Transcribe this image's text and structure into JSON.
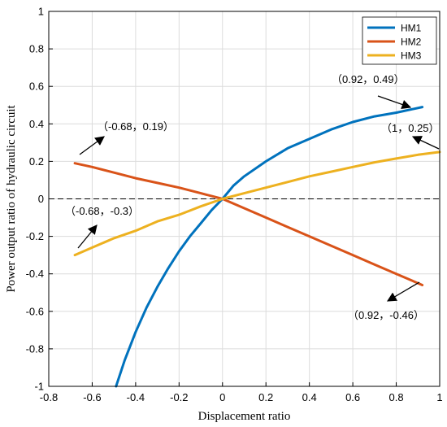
{
  "chart_data": {
    "type": "line",
    "xlabel": "Displacement ratio",
    "ylabel": "Power output ratio of hydraulic circuit",
    "xlim": [
      -0.8,
      1
    ],
    "ylim": [
      -1,
      1
    ],
    "xticks": [
      -0.8,
      -0.6,
      -0.4,
      -0.2,
      0,
      0.2,
      0.4,
      0.6,
      0.8,
      1
    ],
    "yticks": [
      -1,
      -0.8,
      -0.6,
      -0.4,
      -0.2,
      0,
      0.2,
      0.4,
      0.6,
      0.8,
      1
    ],
    "grid": true,
    "legend_position": "top-right",
    "zero_line": {
      "y": 0,
      "style": "dashed"
    },
    "series": [
      {
        "name": "HM1",
        "color": "#0072bd",
        "x": [
          -0.49,
          -0.45,
          -0.4,
          -0.35,
          -0.3,
          -0.25,
          -0.2,
          -0.15,
          -0.1,
          -0.05,
          0,
          0.05,
          0.1,
          0.2,
          0.3,
          0.4,
          0.5,
          0.6,
          0.7,
          0.8,
          0.92
        ],
        "y": [
          -1.0,
          -0.86,
          -0.71,
          -0.58,
          -0.47,
          -0.37,
          -0.28,
          -0.2,
          -0.13,
          -0.06,
          0,
          0.07,
          0.12,
          0.2,
          0.27,
          0.32,
          0.37,
          0.41,
          0.44,
          0.46,
          0.49
        ]
      },
      {
        "name": "HM2",
        "color": "#d95319",
        "x": [
          -0.68,
          -0.6,
          -0.5,
          -0.4,
          -0.3,
          -0.2,
          -0.1,
          0,
          0.1,
          0.2,
          0.3,
          0.4,
          0.5,
          0.6,
          0.7,
          0.8,
          0.92
        ],
        "y": [
          0.19,
          0.17,
          0.14,
          0.11,
          0.085,
          0.06,
          0.03,
          0,
          -0.05,
          -0.1,
          -0.15,
          -0.2,
          -0.25,
          -0.3,
          -0.35,
          -0.4,
          -0.46
        ]
      },
      {
        "name": "HM3",
        "color": "#edb120",
        "x": [
          -0.68,
          -0.6,
          -0.5,
          -0.4,
          -0.3,
          -0.2,
          -0.1,
          0,
          0.1,
          0.2,
          0.3,
          0.4,
          0.5,
          0.6,
          0.7,
          0.8,
          0.9,
          1.0
        ],
        "y": [
          -0.3,
          -0.26,
          -0.21,
          -0.17,
          -0.12,
          -0.085,
          -0.04,
          0,
          0.03,
          0.06,
          0.09,
          0.12,
          0.145,
          0.17,
          0.195,
          0.215,
          0.235,
          0.25
        ]
      }
    ],
    "annotations": [
      {
        "text": "（0.92，0.49）",
        "x": 0.92,
        "y": 0.49
      },
      {
        "text": "（1，0.25）",
        "x": 1,
        "y": 0.25
      },
      {
        "text": "（-0.68，0.19）",
        "x": -0.68,
        "y": 0.19
      },
      {
        "text": "（-0.68，-0.3）",
        "x": -0.68,
        "y": -0.3
      },
      {
        "text": "（0.92，-0.46）",
        "x": 0.92,
        "y": -0.46
      }
    ]
  }
}
